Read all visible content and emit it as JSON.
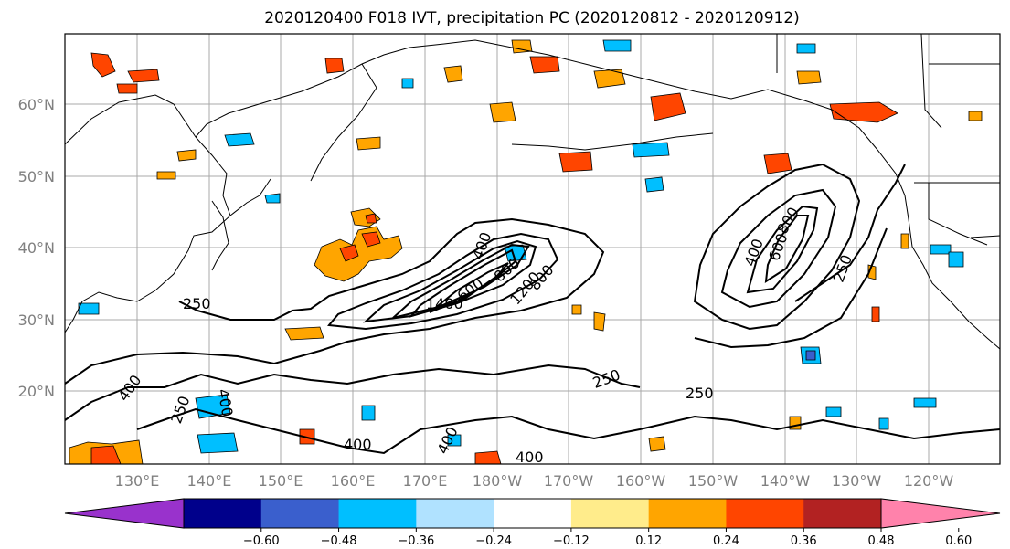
{
  "title": "2020120400 F018 IVT, precipitation PC (2020120812 - 2020120912)",
  "latitude_labels": [
    "60°N",
    "50°N",
    "40°N",
    "30°N",
    "20°N"
  ],
  "longitude_labels": [
    "130°E",
    "140°E",
    "150°E",
    "160°E",
    "170°E",
    "180°W",
    "170°W",
    "160°W",
    "150°W",
    "140°W",
    "130°W",
    "120°W"
  ],
  "ivt_contour_labels": [
    "250",
    "400",
    "600",
    "800",
    "1400",
    "1200",
    "800",
    "400",
    "600",
    "800",
    "250",
    "250",
    "250",
    "400",
    "250",
    "400",
    "400",
    "400",
    "400"
  ],
  "colorbar": {
    "colors": [
      "#9932cc",
      "#00008b",
      "#3a5fcd",
      "#00bfff",
      "#b0e2ff",
      "#ffffff",
      "#ffec8b",
      "#ffa500",
      "#ff4500",
      "#b22222",
      "#ff82ab"
    ],
    "tick_labels": [
      "−0.60",
      "−0.48",
      "−0.36",
      "−0.24",
      "−0.12",
      "0.12",
      "0.24",
      "0.36",
      "0.48",
      "0.60"
    ],
    "extend": "both"
  }
}
